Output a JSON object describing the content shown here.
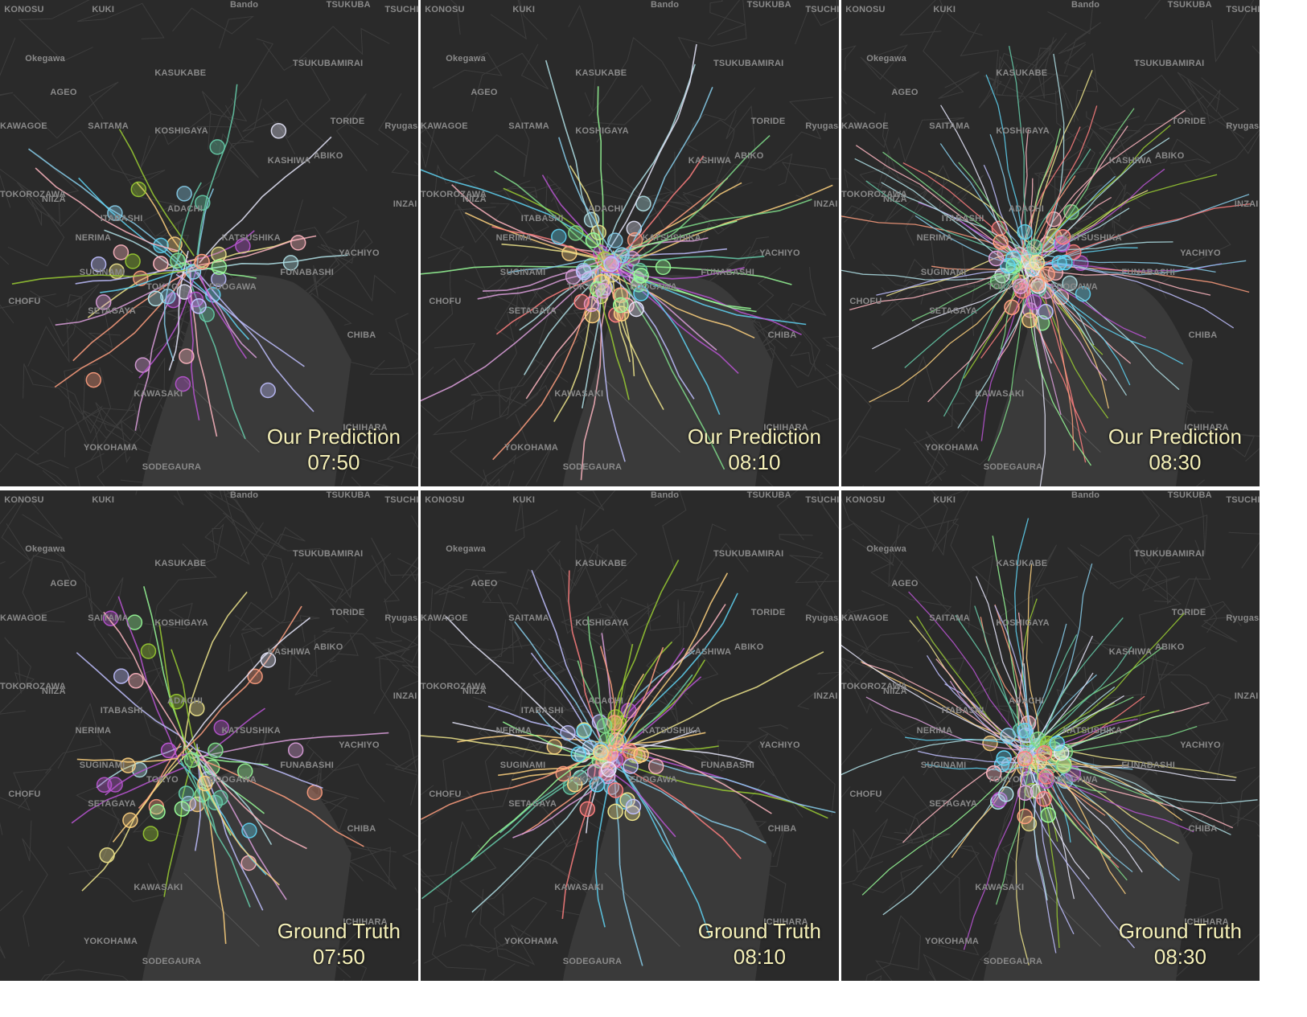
{
  "panels": [
    {
      "id": "p1",
      "title": "Our Prediction",
      "time": "07:50",
      "density": "sparse",
      "seed": 11
    },
    {
      "id": "p2",
      "title": "Our Prediction",
      "time": "08:10",
      "density": "medium",
      "seed": 23
    },
    {
      "id": "p3",
      "title": "Our Prediction",
      "time": "08:30",
      "density": "dense",
      "seed": 37
    },
    {
      "id": "p4",
      "title": "Ground Truth",
      "time": "07:50",
      "density": "sparse",
      "seed": 41
    },
    {
      "id": "p5",
      "title": "Ground Truth",
      "time": "08:10",
      "density": "medium",
      "seed": 53
    },
    {
      "id": "p6",
      "title": "Ground Truth",
      "time": "08:30",
      "density": "dense",
      "seed": 67
    }
  ],
  "place_labels": [
    "KONOSU",
    "KUKI",
    "Bando",
    "TSUKUBA",
    "TSUCHIURA",
    "Okegawa",
    "TSUKUBAMIRAI",
    "KASUKABE",
    "AGEO",
    "KAWAGOE",
    "SAITAMA",
    "KOSHIGAYA",
    "TORIDE",
    "Ryugasaki",
    "ABIKO",
    "KASHIWA",
    "TOKOROZAWA",
    "NIIZA",
    "INZAI",
    "ITABASHI",
    "ADACHI",
    "NERIMA",
    "KATSUSHIKA",
    "YACHIYO",
    "FUNABASHI",
    "SUGINAMI",
    "TOKYO",
    "EDOGAWA",
    "CHOFU",
    "SETAGAYA",
    "CHIBA",
    "KAWASAKI",
    "ICHIHARA",
    "YOKOHAMA",
    "SODEGAURA"
  ],
  "colors": [
    "#7fdc8a",
    "#f0e68c",
    "#87ceeb",
    "#dda0dd",
    "#ff9f7f",
    "#98fb98",
    "#b0e0e6",
    "#ffb6c1",
    "#e6e6fa",
    "#66cdaa",
    "#ffd27f",
    "#9acd32",
    "#ba55d3",
    "#5fd3f3",
    "#ff7f7f",
    "#c0c0ff"
  ]
}
